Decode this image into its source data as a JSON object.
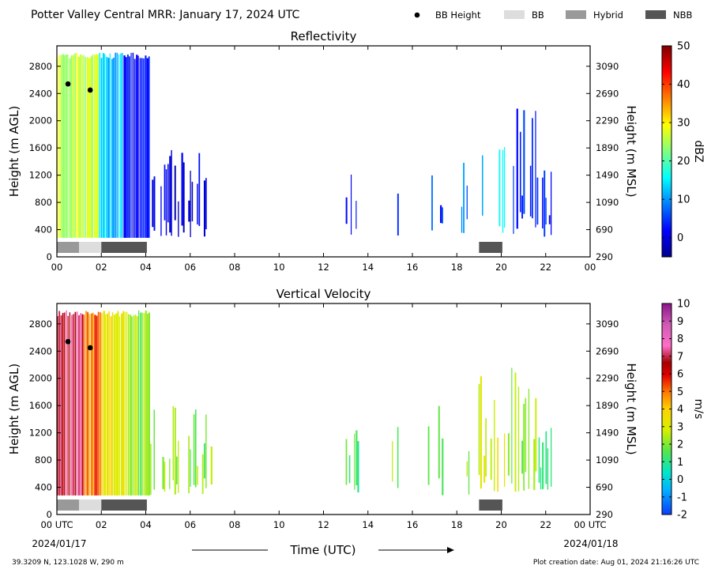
{
  "header": {
    "title": "Potter Valley Central MRR:  January 17, 2024 UTC",
    "legend": [
      {
        "label": "BB Height",
        "kind": "dot",
        "color": "#000000"
      },
      {
        "label": "BB",
        "kind": "box",
        "color": "#dddddd"
      },
      {
        "label": "Hybrid",
        "kind": "box",
        "color": "#999999"
      },
      {
        "label": "NBB",
        "kind": "box",
        "color": "#555555"
      }
    ]
  },
  "footer": {
    "location": "39.3209 N, 123.1028 W, 290 m",
    "creation": "Plot creation date: Aug 01, 2024 21:16:26 UTC",
    "xlabel": "Time (UTC)",
    "start_date": "2024/01/17",
    "end_date": "2024/01/18"
  },
  "chart_data": [
    {
      "type": "heatmap",
      "title": "Reflectivity",
      "ylabel": "Height (m AGL)",
      "ylabel_right": "Height (m MSL)",
      "colorbar_label": "dBZ",
      "x_range_hours": [
        0,
        24
      ],
      "y_range_m": [
        0,
        3100
      ],
      "xticks": [
        "00",
        "02",
        "04",
        "06",
        "08",
        "10",
        "12",
        "14",
        "16",
        "18",
        "20",
        "22",
        "00"
      ],
      "yticks": [
        0,
        400,
        800,
        1200,
        1600,
        2000,
        2400,
        2800
      ],
      "yticks_right": [
        290,
        690,
        1090,
        1490,
        1890,
        2290,
        2690,
        3090
      ],
      "colorbar_range": [
        -5,
        50
      ],
      "colorbar_ticks": [
        0,
        10,
        20,
        30,
        40,
        50
      ],
      "colormap": "jet",
      "bb_height_points": [
        {
          "hour": 0.5,
          "height_m": 2540
        },
        {
          "hour": 1.5,
          "height_m": 2450
        }
      ],
      "rain_type_segments": [
        {
          "start": 0.0,
          "end": 1.0,
          "type": "Hybrid"
        },
        {
          "start": 1.0,
          "end": 2.0,
          "type": "BB"
        },
        {
          "start": 2.0,
          "end": 4.05,
          "type": "NBB"
        },
        {
          "start": 19.0,
          "end": 20.05,
          "type": "NBB"
        }
      ],
      "echo_regions": [
        {
          "start": 0.0,
          "end": 1.9,
          "top_m": 3000,
          "base_m": 280,
          "level": 26
        },
        {
          "start": 1.9,
          "end": 3.0,
          "top_m": 3000,
          "base_m": 280,
          "level": 12
        },
        {
          "start": 3.0,
          "end": 4.2,
          "top_m": 3000,
          "base_m": 280,
          "level": 2
        },
        {
          "start": 4.2,
          "end": 7.0,
          "top_m": 1600,
          "base_m": 280,
          "level": 0
        },
        {
          "start": 13.0,
          "end": 13.6,
          "top_m": 1450,
          "base_m": 280,
          "level": 3
        },
        {
          "start": 15.0,
          "end": 15.4,
          "top_m": 1300,
          "base_m": 280,
          "level": 4
        },
        {
          "start": 16.7,
          "end": 17.4,
          "top_m": 1600,
          "base_m": 280,
          "level": 5
        },
        {
          "start": 18.2,
          "end": 18.6,
          "top_m": 1700,
          "base_m": 280,
          "level": 8
        },
        {
          "start": 18.9,
          "end": 20.2,
          "top_m": 2100,
          "base_m": 280,
          "level": 14
        },
        {
          "start": 20.3,
          "end": 21.6,
          "top_m": 2200,
          "base_m": 280,
          "level": 4
        },
        {
          "start": 21.6,
          "end": 22.3,
          "top_m": 1300,
          "base_m": 280,
          "level": 2
        }
      ]
    },
    {
      "type": "heatmap",
      "title": "Vertical Velocity",
      "ylabel": "Height (m AGL)",
      "ylabel_right": "Height (m MSL)",
      "colorbar_label": "m/s",
      "x_range_hours": [
        0,
        24
      ],
      "y_range_m": [
        0,
        3100
      ],
      "xticks": [
        "00 UTC",
        "02",
        "04",
        "06",
        "08",
        "10",
        "12",
        "14",
        "16",
        "18",
        "20",
        "22",
        "00 UTC"
      ],
      "yticks": [
        0,
        400,
        800,
        1200,
        1600,
        2000,
        2400,
        2800
      ],
      "yticks_right": [
        290,
        690,
        1090,
        1490,
        1890,
        2290,
        2690,
        3090
      ],
      "colorbar_range": [
        -2,
        10
      ],
      "colorbar_ticks": [
        -2,
        -1,
        0,
        1,
        2,
        3,
        4,
        5,
        6,
        7,
        8,
        9,
        10
      ],
      "colormap": "blue-cyan-green-yellow-red-pink-purple",
      "bb_height_points": [
        {
          "hour": 0.5,
          "height_m": 2540
        },
        {
          "hour": 1.5,
          "height_m": 2450
        }
      ],
      "rain_type_segments": [
        {
          "start": 0.0,
          "end": 1.0,
          "type": "Hybrid"
        },
        {
          "start": 1.0,
          "end": 2.0,
          "type": "BB"
        },
        {
          "start": 2.0,
          "end": 4.05,
          "type": "NBB"
        },
        {
          "start": 19.0,
          "end": 20.05,
          "type": "NBB"
        }
      ],
      "echo_regions": [
        {
          "start": 0.0,
          "end": 1.2,
          "top_m": 3000,
          "base_m": 280,
          "level": 7
        },
        {
          "start": 1.2,
          "end": 2.0,
          "top_m": 3000,
          "base_m": 280,
          "level": 5
        },
        {
          "start": 2.0,
          "end": 3.2,
          "top_m": 3000,
          "base_m": 280,
          "level": 3.5
        },
        {
          "start": 3.2,
          "end": 4.2,
          "top_m": 3000,
          "base_m": 280,
          "level": 2
        },
        {
          "start": 4.2,
          "end": 7.0,
          "top_m": 1600,
          "base_m": 280,
          "level": 2
        },
        {
          "start": 13.0,
          "end": 13.6,
          "top_m": 1450,
          "base_m": 280,
          "level": 1.5
        },
        {
          "start": 15.0,
          "end": 15.4,
          "top_m": 1300,
          "base_m": 280,
          "level": 2
        },
        {
          "start": 16.7,
          "end": 17.4,
          "top_m": 1600,
          "base_m": 280,
          "level": 2
        },
        {
          "start": 18.2,
          "end": 18.6,
          "top_m": 1700,
          "base_m": 280,
          "level": 2
        },
        {
          "start": 18.9,
          "end": 20.2,
          "top_m": 2100,
          "base_m": 280,
          "level": 3
        },
        {
          "start": 20.3,
          "end": 21.6,
          "top_m": 2200,
          "base_m": 280,
          "level": 2
        },
        {
          "start": 21.6,
          "end": 22.3,
          "top_m": 1300,
          "base_m": 280,
          "level": 1.5
        }
      ]
    }
  ]
}
